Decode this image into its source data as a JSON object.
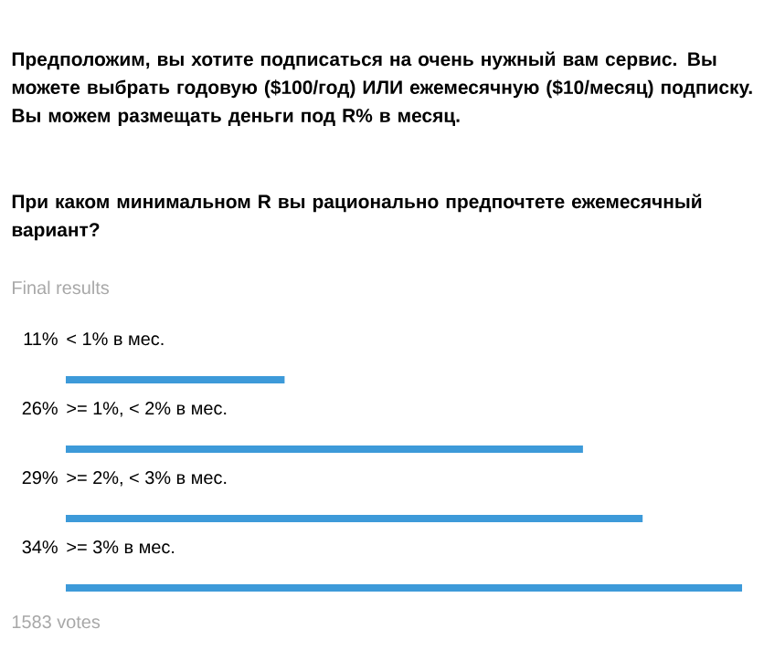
{
  "chart_data": {
    "type": "bar",
    "orientation": "horizontal",
    "title": "Предположим, вы хотите подписаться на очень нужный вам сервис. Вы можете выбрать годовую ($100/год) ИЛИ ежемесячную ($10/месяц) подписку. Вы можем размещать деньги под R% в месяц.",
    "subtitle": "При каком минимальном R вы рационально предпочтете ежемесячный вариант?",
    "categories": [
      "< 1% в мес.",
      ">= 1%, < 2% в мес.",
      ">= 2%, < 3% в мес.",
      ">= 3% в мес."
    ],
    "values": [
      11,
      26,
      29,
      34
    ],
    "value_labels": [
      "11%",
      "26%",
      "29%",
      "34%"
    ],
    "color": "#3d9ad9",
    "annotations": [
      "Final results",
      "1583 votes"
    ]
  }
}
